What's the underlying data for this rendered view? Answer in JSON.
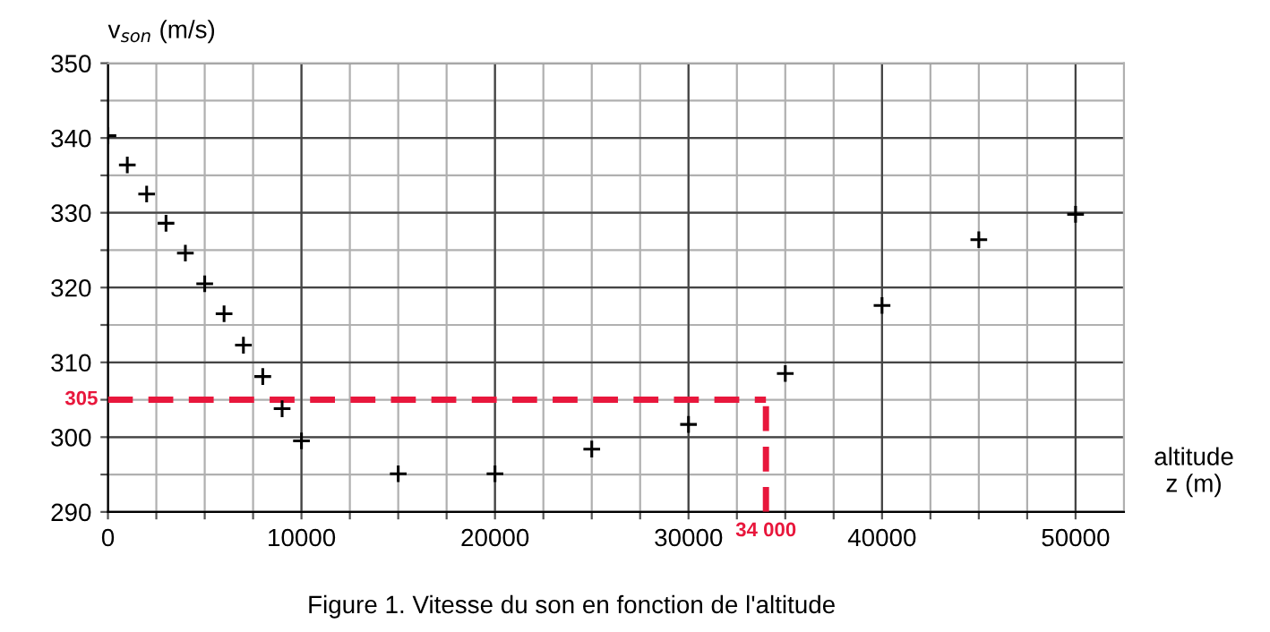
{
  "chart_data": {
    "type": "scatter",
    "title": "Figure 1. Vitesse du son en fonction de l'altitude",
    "ylabel": "v$_{son}$ (m/s)",
    "xlabel": "altitude\nz (m)",
    "x": [
      0,
      1000,
      2000,
      3000,
      4000,
      5000,
      6000,
      7000,
      8000,
      9000,
      10000,
      15000,
      20000,
      25000,
      30000,
      35000,
      40000,
      45000,
      50000
    ],
    "series": [
      {
        "color": "#000000",
        "values": [
          340.3,
          336.4,
          332.5,
          328.6,
          324.6,
          320.5,
          316.5,
          312.3,
          308.1,
          303.8,
          299.5,
          295.1,
          295.1,
          298.4,
          301.7,
          308.5,
          317.6,
          326.4,
          329.8
        ]
      }
    ],
    "marker": "cross",
    "xlim": [
      0,
      52500
    ],
    "ylim": [
      290,
      350
    ],
    "xticks": [
      0,
      {
        "value": 2500,
        "label": null
      },
      {
        "value": 5000,
        "label": null
      },
      {
        "value": 7500,
        "label": null
      },
      10000,
      {
        "value": 12500,
        "label": null
      },
      {
        "value": 15000,
        "label": null
      },
      {
        "value": 17500,
        "label": null
      },
      20000,
      {
        "value": 22500,
        "label": null
      },
      {
        "value": 25000,
        "label": null
      },
      {
        "value": 27500,
        "label": null
      },
      30000,
      {
        "value": 32500,
        "label": null
      },
      {
        "value": 35000,
        "label": null
      },
      {
        "value": 37500,
        "label": null
      },
      40000,
      {
        "value": 42500,
        "label": null
      },
      {
        "value": 45000,
        "label": null
      },
      {
        "value": 47500,
        "label": null
      },
      50000
    ],
    "yticks": [
      290,
      {
        "value": 295,
        "label": null
      },
      300,
      {
        "value": 305,
        "label": null
      },
      310,
      {
        "value": 315,
        "label": null
      },
      320,
      {
        "value": 325,
        "label": null
      },
      330,
      {
        "value": 335,
        "label": null
      },
      340,
      {
        "value": 345,
        "label": null
      },
      350
    ],
    "grid": true,
    "ref_lines": [
      {
        "axis": "y",
        "value": 305,
        "label": "305",
        "color": "#e8173c",
        "line_style": "dashed"
      },
      {
        "axis": "x",
        "value": 34000,
        "label": "34 000",
        "color": "#e8173c",
        "line_style": "dashed"
      }
    ]
  }
}
